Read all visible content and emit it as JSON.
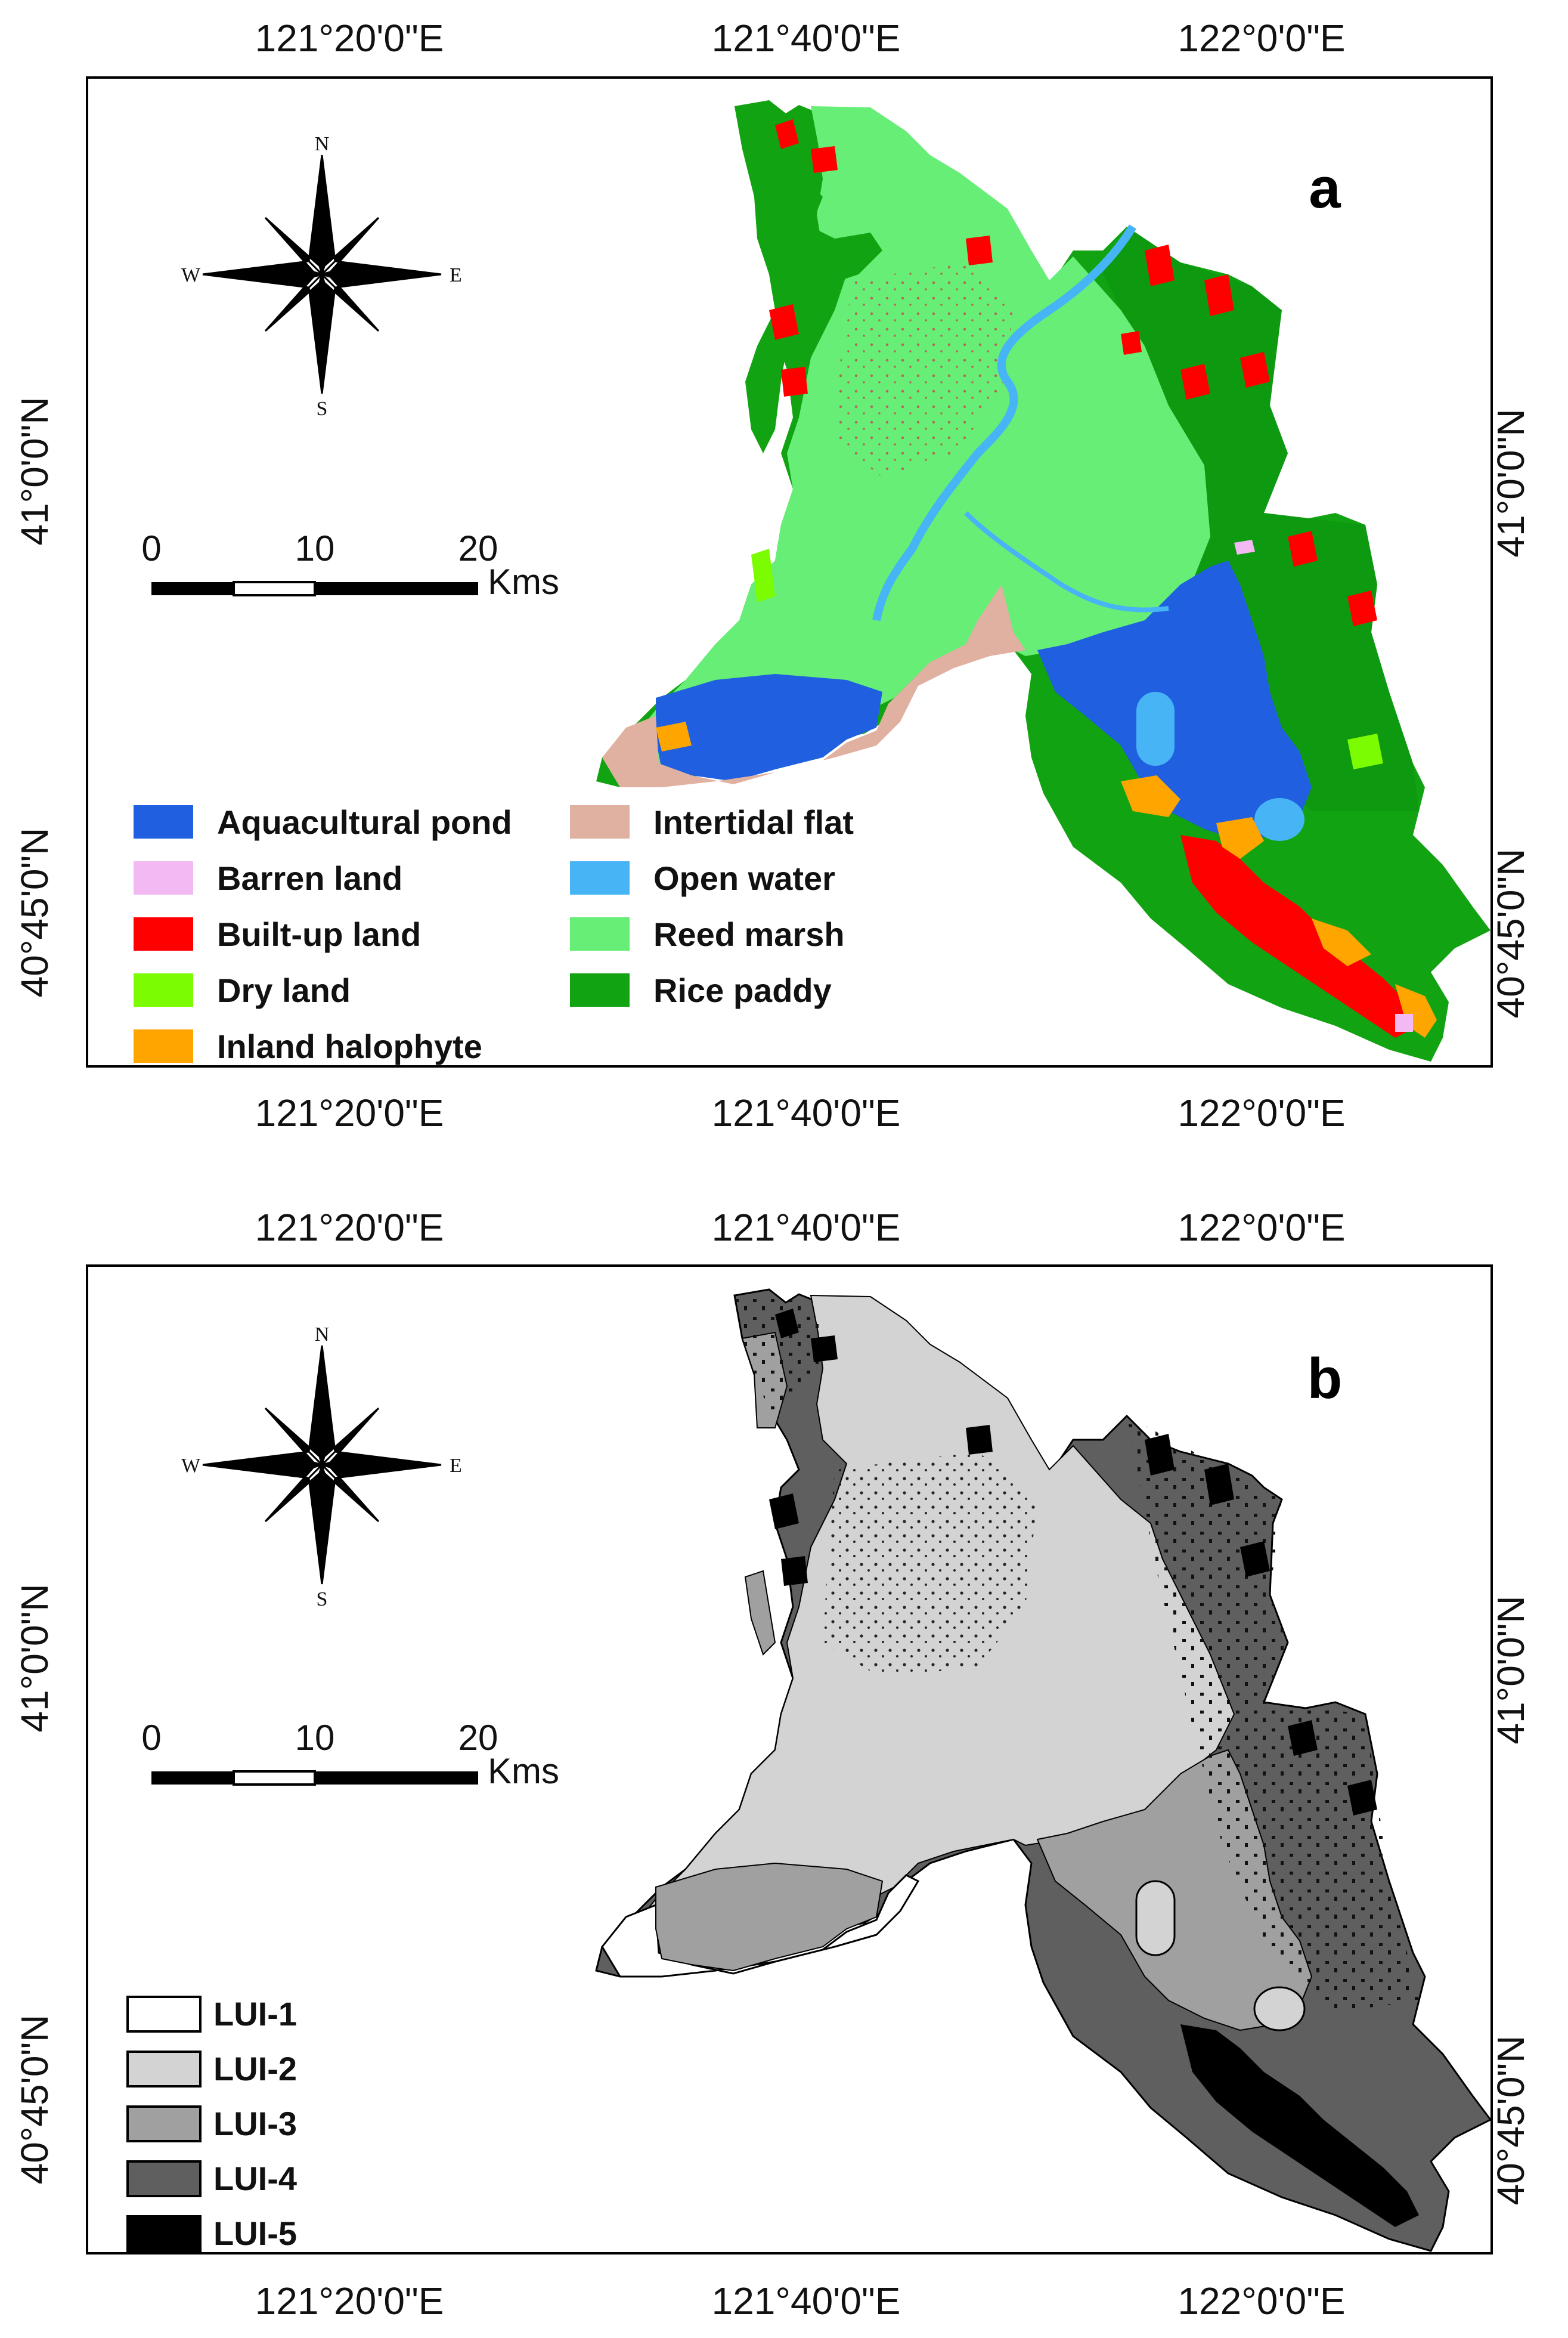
{
  "colors": {
    "aquacultural_pond": "#1f5fe0",
    "barren_land": "#f3b9f3",
    "built_up_land": "#ff0000",
    "dry_land": "#7cfc00",
    "inland_halophyte": "#ffa500",
    "intertidal_flat": "#e0b0a0",
    "open_water": "#47b4f5",
    "reed_marsh": "#66ee77",
    "rice_paddy": "#12a312",
    "lui1": "#ffffff",
    "lui2": "#d3d3d3",
    "lui3": "#a0a0a0",
    "lui4": "#5f5f5f",
    "lui5": "#000000"
  },
  "panel_a": {
    "label": "a",
    "coords": {
      "top_lon": [
        "121°20'0\"E",
        "121°40'0\"E",
        "122°0'0\"E"
      ],
      "bottom_lon": [
        "121°20'0\"E",
        "121°40'0\"E",
        "122°0'0\"E"
      ],
      "left_lat": [
        "41°0'0\"N",
        "40°45'0\"N"
      ],
      "right_lat": [
        "41°0'0\"N",
        "40°45'0\"N"
      ]
    },
    "compass": {
      "n": "N",
      "s": "S",
      "e": "E",
      "w": "W"
    },
    "scale": {
      "ticks": [
        "0",
        "10",
        "20"
      ],
      "unit": "Kms"
    },
    "legend": [
      {
        "label": "Aquacultural pond",
        "color": "#1f5fe0"
      },
      {
        "label": "Barren land",
        "color": "#f3b9f3"
      },
      {
        "label": "Built-up land",
        "color": "#ff0000"
      },
      {
        "label": "Dry land",
        "color": "#7cfc00"
      },
      {
        "label": "Inland halophyte",
        "color": "#ffa500"
      },
      {
        "label": "Intertidal flat",
        "color": "#e0b0a0"
      },
      {
        "label": "Open water",
        "color": "#47b4f5"
      },
      {
        "label": "Reed marsh",
        "color": "#66ee77"
      },
      {
        "label": "Rice paddy",
        "color": "#12a312"
      }
    ]
  },
  "panel_b": {
    "label": "b",
    "coords": {
      "top_lon": [
        "121°20'0\"E",
        "121°40'0\"E",
        "122°0'0\"E"
      ],
      "bottom_lon": [
        "121°20'0\"E",
        "121°40'0\"E",
        "122°0'0\"E"
      ],
      "left_lat": [
        "41°0'0\"N",
        "40°45'0\"N"
      ],
      "right_lat": [
        "41°0'0\"N",
        "40°45'0\"N"
      ]
    },
    "compass": {
      "n": "N",
      "s": "S",
      "e": "E",
      "w": "W"
    },
    "scale": {
      "ticks": [
        "0",
        "10",
        "20"
      ],
      "unit": "Kms"
    },
    "legend": [
      {
        "label": "LUI-1",
        "color": "#ffffff"
      },
      {
        "label": "LUI-2",
        "color": "#d3d3d3"
      },
      {
        "label": "LUI-3",
        "color": "#a0a0a0"
      },
      {
        "label": "LUI-4",
        "color": "#5f5f5f"
      },
      {
        "label": "LUI-5",
        "color": "#000000"
      }
    ]
  }
}
